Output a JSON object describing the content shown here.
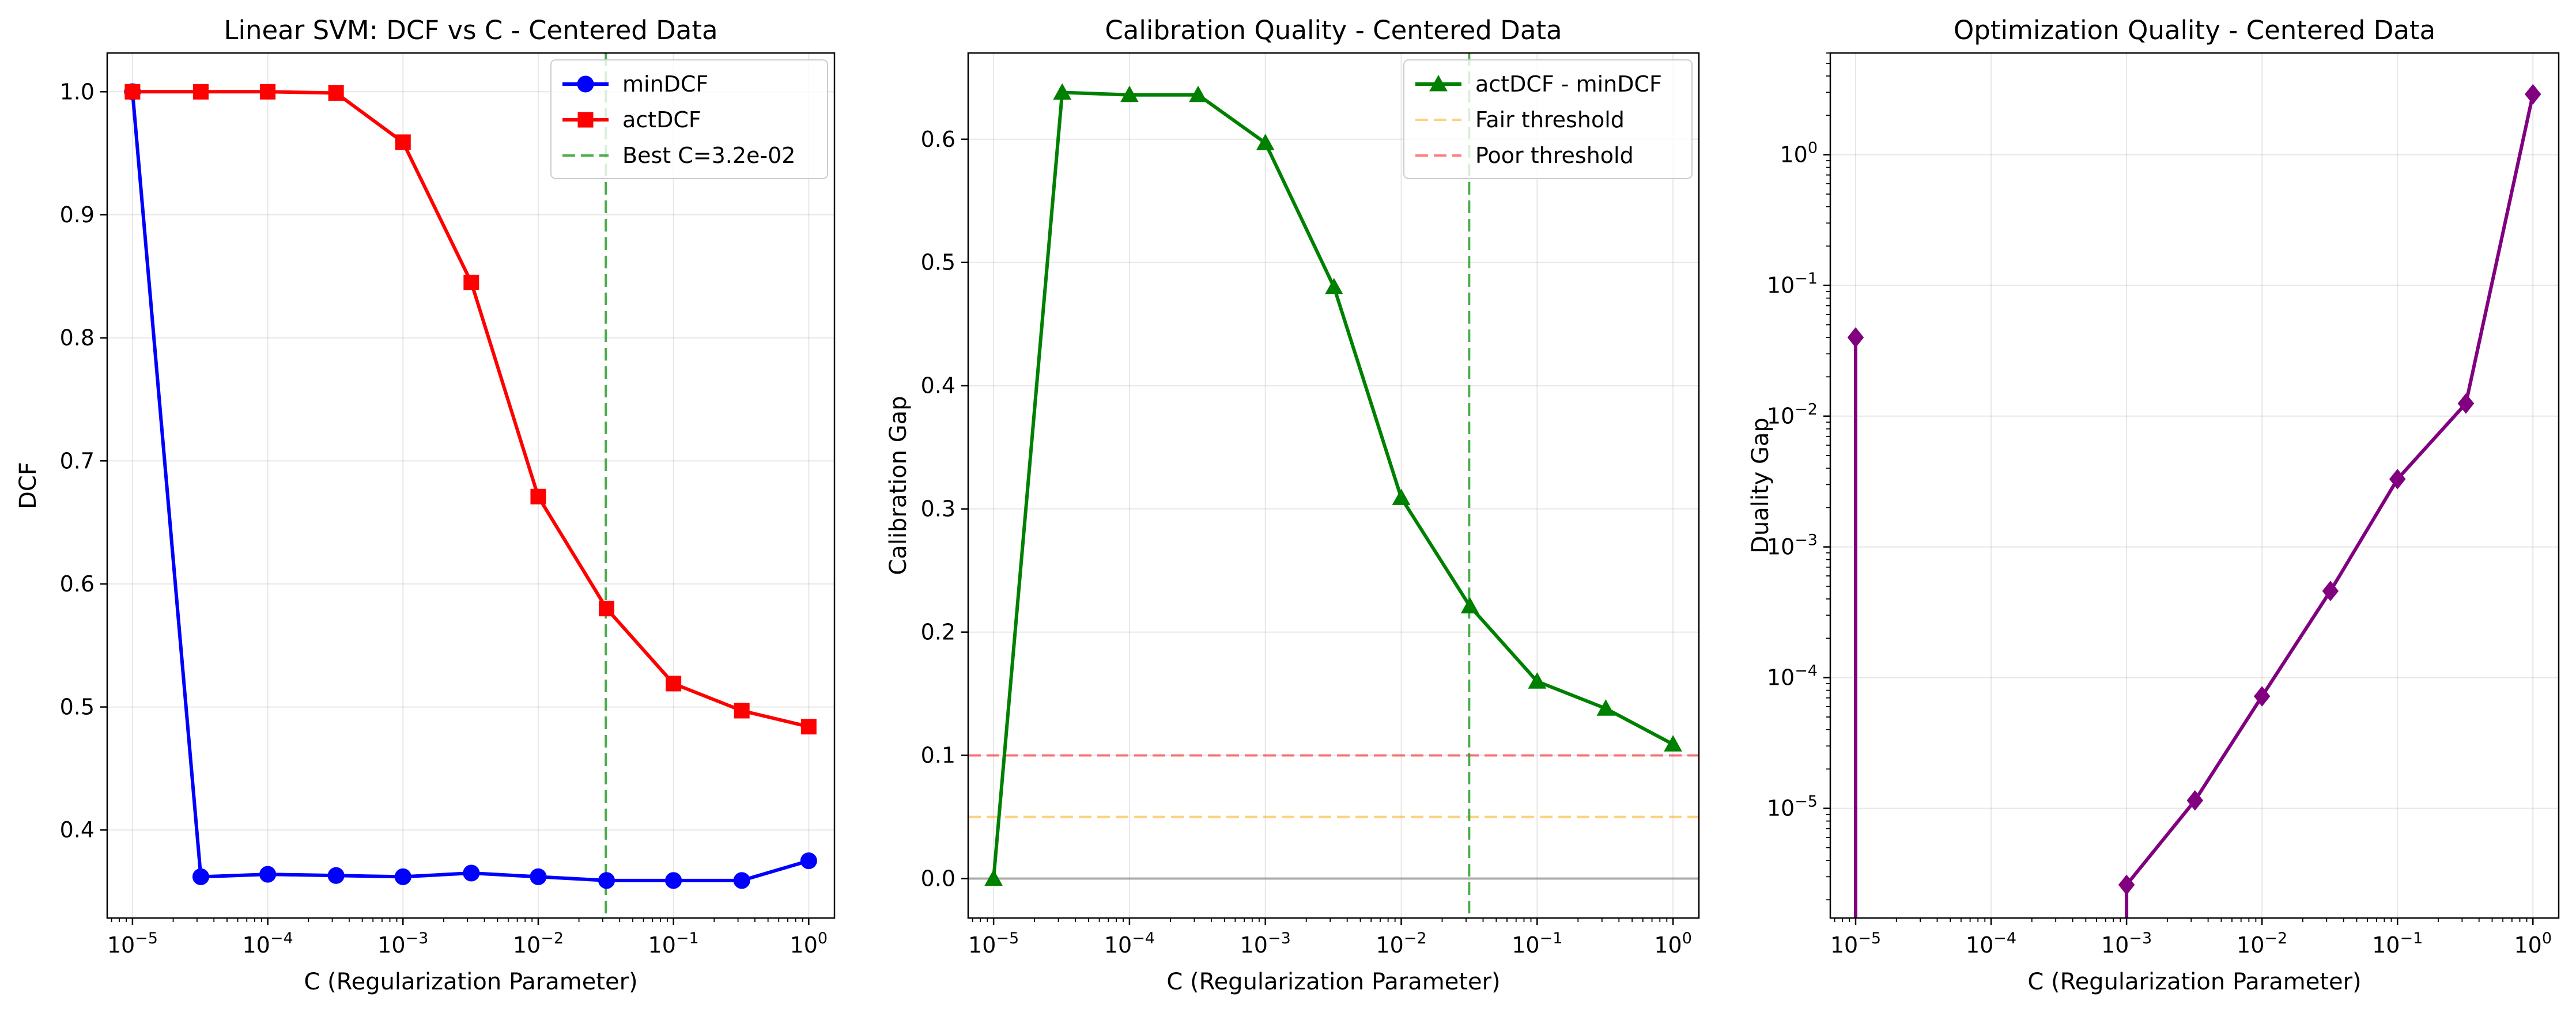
{
  "chart_data": [
    {
      "type": "line",
      "title": "Linear SVM: DCF vs C - Centered Data",
      "xlabel": "C (Regularization Parameter)",
      "ylabel": "DCF",
      "xscale": "log",
      "yscale": "linear",
      "xlim": [
        6.5e-06,
        1.55
      ],
      "ylim": [
        0.3285,
        1.0315
      ],
      "grid": true,
      "legend_position": "upper right",
      "x": [
        1e-05,
        3.2e-05,
        0.0001,
        0.00032,
        0.001,
        0.0032,
        0.01,
        0.032,
        0.1,
        0.32,
        1
      ],
      "xticks": [
        {
          "value": 1e-05,
          "base": "10",
          "exp": "−5"
        },
        {
          "value": 0.0001,
          "base": "10",
          "exp": "−4"
        },
        {
          "value": 0.001,
          "base": "10",
          "exp": "−3"
        },
        {
          "value": 0.01,
          "base": "10",
          "exp": "−2"
        },
        {
          "value": 0.1,
          "base": "10",
          "exp": "−1"
        },
        {
          "value": 1,
          "base": "10",
          "exp": "0"
        }
      ],
      "yticks": [
        {
          "value": 0.4,
          "label": "0.4"
        },
        {
          "value": 0.5,
          "label": "0.5"
        },
        {
          "value": 0.6,
          "label": "0.6"
        },
        {
          "value": 0.7,
          "label": "0.7"
        },
        {
          "value": 0.8,
          "label": "0.8"
        },
        {
          "value": 0.9,
          "label": "0.9"
        },
        {
          "value": 1.0,
          "label": "1.0"
        }
      ],
      "series": [
        {
          "name": "minDCF",
          "color": "#0000ff",
          "marker": "circle",
          "values": [
            1.0,
            0.362,
            0.364,
            0.363,
            0.362,
            0.365,
            0.362,
            0.359,
            0.359,
            0.359,
            0.375
          ]
        },
        {
          "name": "actDCF",
          "color": "#ff0000",
          "marker": "square",
          "values": [
            1.0,
            1.0,
            1.0,
            0.999,
            0.959,
            0.845,
            0.671,
            0.58,
            0.519,
            0.497,
            0.484
          ]
        }
      ],
      "vlines": [
        {
          "x": 0.0316,
          "name": "Best C=3.2e-02",
          "color": "#2ca02c",
          "dash": true
        }
      ]
    },
    {
      "type": "line",
      "title": "Calibration Quality - Centered Data",
      "xlabel": "C (Regularization Parameter)",
      "ylabel": "Calibration Gap",
      "xscale": "log",
      "yscale": "linear",
      "xlim": [
        6.5e-06,
        1.55
      ],
      "ylim": [
        -0.032,
        0.67
      ],
      "grid": true,
      "legend_position": "upper right",
      "x": [
        1e-05,
        3.2e-05,
        0.0001,
        0.00032,
        0.001,
        0.0032,
        0.01,
        0.032,
        0.1,
        0.32,
        1
      ],
      "xticks": [
        {
          "value": 1e-05,
          "base": "10",
          "exp": "−5"
        },
        {
          "value": 0.0001,
          "base": "10",
          "exp": "−4"
        },
        {
          "value": 0.001,
          "base": "10",
          "exp": "−3"
        },
        {
          "value": 0.01,
          "base": "10",
          "exp": "−2"
        },
        {
          "value": 0.1,
          "base": "10",
          "exp": "−1"
        },
        {
          "value": 1,
          "base": "10",
          "exp": "0"
        }
      ],
      "yticks": [
        {
          "value": 0.0,
          "label": "0.0"
        },
        {
          "value": 0.1,
          "label": "0.1"
        },
        {
          "value": 0.2,
          "label": "0.2"
        },
        {
          "value": 0.3,
          "label": "0.3"
        },
        {
          "value": 0.4,
          "label": "0.4"
        },
        {
          "value": 0.5,
          "label": "0.5"
        },
        {
          "value": 0.6,
          "label": "0.6"
        }
      ],
      "series": [
        {
          "name": "actDCF - minDCF",
          "color": "#008000",
          "marker": "triangle",
          "values": [
            0.0,
            0.638,
            0.636,
            0.636,
            0.597,
            0.48,
            0.309,
            0.221,
            0.16,
            0.138,
            0.109
          ]
        }
      ],
      "hlines": [
        {
          "y": 0.05,
          "name": "Fair threshold",
          "color": "#ffa500",
          "dash": true,
          "opacity": 0.5
        },
        {
          "y": 0.1,
          "name": "Poor threshold",
          "color": "#ff0000",
          "dash": true,
          "opacity": 0.5
        },
        {
          "y": 0.0,
          "name": "",
          "color": "#808080",
          "dash": false,
          "opacity": 0.6
        }
      ],
      "vlines": [
        {
          "x": 0.0316,
          "name": "",
          "color": "#2ca02c",
          "dash": true
        }
      ]
    },
    {
      "type": "line",
      "title": "Optimization Quality - Centered Data",
      "xlabel": "C (Regularization Parameter)",
      "ylabel": "Duality Gap",
      "xscale": "log",
      "yscale": "log",
      "xlim": [
        6.5e-06,
        1.55
      ],
      "ylim": [
        1.45e-06,
        6
      ],
      "grid": true,
      "x": [
        1e-05,
        3.2e-05,
        0.0001,
        0.00032,
        0.001,
        0.0032,
        0.01,
        0.032,
        0.1,
        0.32,
        1
      ],
      "xticks": [
        {
          "value": 1e-05,
          "base": "10",
          "exp": "−5"
        },
        {
          "value": 0.0001,
          "base": "10",
          "exp": "−4"
        },
        {
          "value": 0.001,
          "base": "10",
          "exp": "−3"
        },
        {
          "value": 0.01,
          "base": "10",
          "exp": "−2"
        },
        {
          "value": 0.1,
          "base": "10",
          "exp": "−1"
        },
        {
          "value": 1,
          "base": "10",
          "exp": "0"
        }
      ],
      "yticks": [
        {
          "value": 1e-05,
          "base": "10",
          "exp": "−5"
        },
        {
          "value": 0.0001,
          "base": "10",
          "exp": "−4"
        },
        {
          "value": 0.001,
          "base": "10",
          "exp": "−3"
        },
        {
          "value": 0.01,
          "base": "10",
          "exp": "−2"
        },
        {
          "value": 0.1,
          "base": "10",
          "exp": "−1"
        },
        {
          "value": 1,
          "base": "10",
          "exp": "0"
        }
      ],
      "series": [
        {
          "name": "",
          "color": "#800080",
          "marker": "diamond",
          "values": [
            0.04,
            null,
            null,
            null,
            2.6e-06,
            1.15e-05,
            7.2e-05,
            0.00046,
            0.0033,
            0.0125,
            2.9
          ],
          "note_nonpositive_x": [
            3.2e-05,
            0.0001,
            0.00032
          ]
        }
      ]
    }
  ]
}
